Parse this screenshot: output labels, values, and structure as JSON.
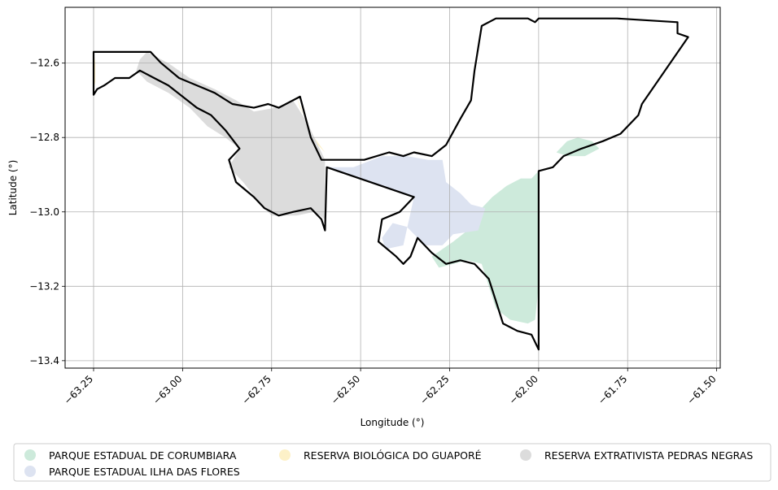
{
  "map": {
    "xlabel": "Longitude (°)",
    "ylabel": "Latitude (°)",
    "x_ticks": [
      {
        "value": -63.25,
        "label": "−63.25"
      },
      {
        "value": -63.0,
        "label": "−63.00"
      },
      {
        "value": -62.75,
        "label": "−62.75"
      },
      {
        "value": -62.5,
        "label": "−62.50"
      },
      {
        "value": -62.25,
        "label": "−62.25"
      },
      {
        "value": -62.0,
        "label": "−62.00"
      },
      {
        "value": -61.75,
        "label": "−61.75"
      },
      {
        "value": -61.5,
        "label": "−61.50"
      }
    ],
    "y_ticks": [
      {
        "value": -12.6,
        "label": "−12.6"
      },
      {
        "value": -12.8,
        "label": "−12.8"
      },
      {
        "value": -13.0,
        "label": "−13.0"
      },
      {
        "value": -13.2,
        "label": "−13.2"
      },
      {
        "value": -13.4,
        "label": "−13.4"
      }
    ],
    "xlim": [
      -63.33,
      -61.49
    ],
    "ylim": [
      -13.42,
      -12.45
    ],
    "grid": true,
    "legend_position": "bottom"
  },
  "legend": {
    "items": [
      {
        "label": "PARQUE ESTADUAL DE CORUMBIARA",
        "color": "#cdeadb"
      },
      {
        "label": "PARQUE ESTADUAL ILHA DAS FLORES",
        "color": "#dde3f1"
      },
      {
        "label": "RESERVA BIOLÓGICA DO GUAPORÉ",
        "color": "#fdf1c8"
      },
      {
        "label": "RESERVA EXTRATIVISTA PEDRAS NEGRAS",
        "color": "#dcdcdc"
      }
    ]
  },
  "areas": {
    "corumbiara": {
      "color": "#cdeadb",
      "coords": [
        [
          -62.0,
          -12.89
        ],
        [
          -62.02,
          -12.91
        ],
        [
          -62.05,
          -12.91
        ],
        [
          -62.09,
          -12.93
        ],
        [
          -62.13,
          -12.96
        ],
        [
          -62.16,
          -12.99
        ],
        [
          -62.2,
          -13.05
        ],
        [
          -62.24,
          -13.08
        ],
        [
          -62.27,
          -13.1
        ],
        [
          -62.3,
          -13.12
        ],
        [
          -62.28,
          -13.15
        ],
        [
          -62.24,
          -13.14
        ],
        [
          -62.2,
          -13.13
        ],
        [
          -62.16,
          -13.14
        ],
        [
          -62.14,
          -13.2
        ],
        [
          -62.12,
          -13.26
        ],
        [
          -62.08,
          -13.29
        ],
        [
          -62.03,
          -13.3
        ],
        [
          -62.01,
          -13.29
        ],
        [
          -62.0,
          -13.2
        ]
      ]
    },
    "corumbiara_small": {
      "color": "#cdeadb",
      "coords": [
        [
          -61.95,
          -12.84
        ],
        [
          -61.92,
          -12.81
        ],
        [
          -61.89,
          -12.8
        ],
        [
          -61.85,
          -12.81
        ],
        [
          -61.83,
          -12.83
        ],
        [
          -61.87,
          -12.85
        ],
        [
          -61.92,
          -12.85
        ]
      ]
    },
    "ilha_flores": {
      "color": "#dde3f1",
      "coords": [
        [
          -62.59,
          -12.88
        ],
        [
          -62.52,
          -12.88
        ],
        [
          -62.44,
          -12.85
        ],
        [
          -62.37,
          -12.85
        ],
        [
          -62.31,
          -12.86
        ],
        [
          -62.27,
          -12.86
        ],
        [
          -62.26,
          -12.92
        ],
        [
          -62.22,
          -12.95
        ],
        [
          -62.19,
          -12.98
        ],
        [
          -62.15,
          -12.99
        ],
        [
          -62.17,
          -13.05
        ],
        [
          -62.24,
          -13.06
        ],
        [
          -62.27,
          -13.09
        ],
        [
          -62.32,
          -13.09
        ],
        [
          -62.37,
          -13.04
        ],
        [
          -62.41,
          -13.03
        ],
        [
          -62.44,
          -13.07
        ],
        [
          -62.43,
          -13.1
        ],
        [
          -62.38,
          -13.09
        ],
        [
          -62.35,
          -12.96
        ]
      ]
    },
    "guapore": {
      "color": "#fdf1c8",
      "coords": [
        [
          -62.68,
          -12.69
        ],
        [
          -62.66,
          -12.74
        ],
        [
          -62.63,
          -12.8
        ],
        [
          -62.6,
          -12.84
        ],
        [
          -62.62,
          -12.82
        ],
        [
          -62.65,
          -12.76
        ],
        [
          -62.67,
          -12.72
        ]
      ]
    },
    "guapore_small": {
      "color": "#fdf1c8",
      "coords": [
        [
          -63.25,
          -12.57
        ],
        [
          -63.245,
          -12.6
        ],
        [
          -63.245,
          -12.65
        ],
        [
          -63.25,
          -12.67
        ]
      ]
    },
    "pedras_negras": {
      "color": "#dcdcdc",
      "coords": [
        [
          -63.12,
          -12.59
        ],
        [
          -63.1,
          -12.57
        ],
        [
          -63.04,
          -12.6
        ],
        [
          -62.98,
          -12.64
        ],
        [
          -62.91,
          -12.67
        ],
        [
          -62.85,
          -12.7
        ],
        [
          -62.8,
          -12.73
        ],
        [
          -62.74,
          -12.72
        ],
        [
          -62.69,
          -12.7
        ],
        [
          -62.65,
          -12.76
        ],
        [
          -62.62,
          -12.82
        ],
        [
          -62.6,
          -12.86
        ],
        [
          -62.6,
          -13.02
        ],
        [
          -62.63,
          -13.0
        ],
        [
          -62.68,
          -13.01
        ],
        [
          -62.75,
          -13.01
        ],
        [
          -62.78,
          -12.98
        ],
        [
          -62.83,
          -12.92
        ],
        [
          -62.87,
          -12.88
        ],
        [
          -62.84,
          -12.83
        ],
        [
          -62.88,
          -12.8
        ],
        [
          -62.93,
          -12.77
        ],
        [
          -62.98,
          -12.72
        ],
        [
          -63.04,
          -12.68
        ],
        [
          -63.1,
          -12.65
        ],
        [
          -63.13,
          -12.62
        ]
      ]
    }
  },
  "outline": {
    "main": [
      [
        -63.25,
        -12.685
      ],
      [
        -63.24,
        -12.67
      ],
      [
        -63.22,
        -12.66
      ],
      [
        -63.19,
        -12.64
      ],
      [
        -63.15,
        -12.64
      ],
      [
        -63.12,
        -12.62
      ],
      [
        -63.08,
        -12.64
      ],
      [
        -63.04,
        -12.66
      ],
      [
        -63.0,
        -12.69
      ],
      [
        -62.96,
        -12.72
      ],
      [
        -62.92,
        -12.74
      ],
      [
        -62.88,
        -12.78
      ],
      [
        -62.84,
        -12.83
      ],
      [
        -62.87,
        -12.86
      ],
      [
        -62.85,
        -12.92
      ],
      [
        -62.8,
        -12.96
      ],
      [
        -62.77,
        -12.99
      ],
      [
        -62.73,
        -13.01
      ],
      [
        -62.69,
        -13.0
      ],
      [
        -62.64,
        -12.99
      ],
      [
        -62.61,
        -13.02
      ],
      [
        -62.6,
        -13.05
      ],
      [
        -62.595,
        -12.88
      ],
      [
        -62.35,
        -12.96
      ],
      [
        -62.39,
        -13.0
      ],
      [
        -62.44,
        -13.02
      ],
      [
        -62.45,
        -13.08
      ],
      [
        -62.4,
        -13.12
      ],
      [
        -62.38,
        -13.14
      ],
      [
        -62.36,
        -13.12
      ],
      [
        -62.34,
        -13.07
      ],
      [
        -62.3,
        -13.11
      ],
      [
        -62.26,
        -13.14
      ],
      [
        -62.22,
        -13.13
      ],
      [
        -62.18,
        -13.14
      ],
      [
        -62.14,
        -13.18
      ],
      [
        -62.12,
        -13.24
      ],
      [
        -62.1,
        -13.3
      ],
      [
        -62.06,
        -13.32
      ],
      [
        -62.02,
        -13.33
      ],
      [
        -62.0,
        -13.37
      ],
      [
        -62.0,
        -12.89
      ],
      [
        -61.96,
        -12.88
      ],
      [
        -61.93,
        -12.85
      ],
      [
        -61.88,
        -12.83
      ],
      [
        -61.82,
        -12.81
      ],
      [
        -61.77,
        -12.79
      ],
      [
        -61.72,
        -12.74
      ],
      [
        -61.71,
        -12.71
      ],
      [
        -61.58,
        -12.53
      ],
      [
        -61.61,
        -12.52
      ],
      [
        -61.61,
        -12.49
      ],
      [
        -61.78,
        -12.48
      ],
      [
        -62.0,
        -12.48
      ],
      [
        -62.01,
        -12.49
      ],
      [
        -62.03,
        -12.48
      ],
      [
        -62.12,
        -12.48
      ],
      [
        -62.16,
        -12.5
      ],
      [
        -62.17,
        -12.56
      ],
      [
        -62.18,
        -12.62
      ],
      [
        -62.19,
        -12.7
      ],
      [
        -62.22,
        -12.75
      ],
      [
        -62.26,
        -12.82
      ],
      [
        -62.3,
        -12.85
      ],
      [
        -62.35,
        -12.84
      ],
      [
        -62.38,
        -12.85
      ],
      [
        -62.42,
        -12.84
      ],
      [
        -62.49,
        -12.86
      ],
      [
        -62.55,
        -12.86
      ],
      [
        -62.61,
        -12.86
      ],
      [
        -62.64,
        -12.8
      ],
      [
        -62.67,
        -12.69
      ],
      [
        -62.73,
        -12.72
      ],
      [
        -62.76,
        -12.71
      ],
      [
        -62.8,
        -12.72
      ],
      [
        -62.86,
        -12.71
      ],
      [
        -62.91,
        -12.68
      ],
      [
        -62.96,
        -12.66
      ],
      [
        -63.01,
        -12.64
      ],
      [
        -63.06,
        -12.6
      ],
      [
        -63.09,
        -12.57
      ],
      [
        -63.25,
        -12.57
      ]
    ]
  }
}
